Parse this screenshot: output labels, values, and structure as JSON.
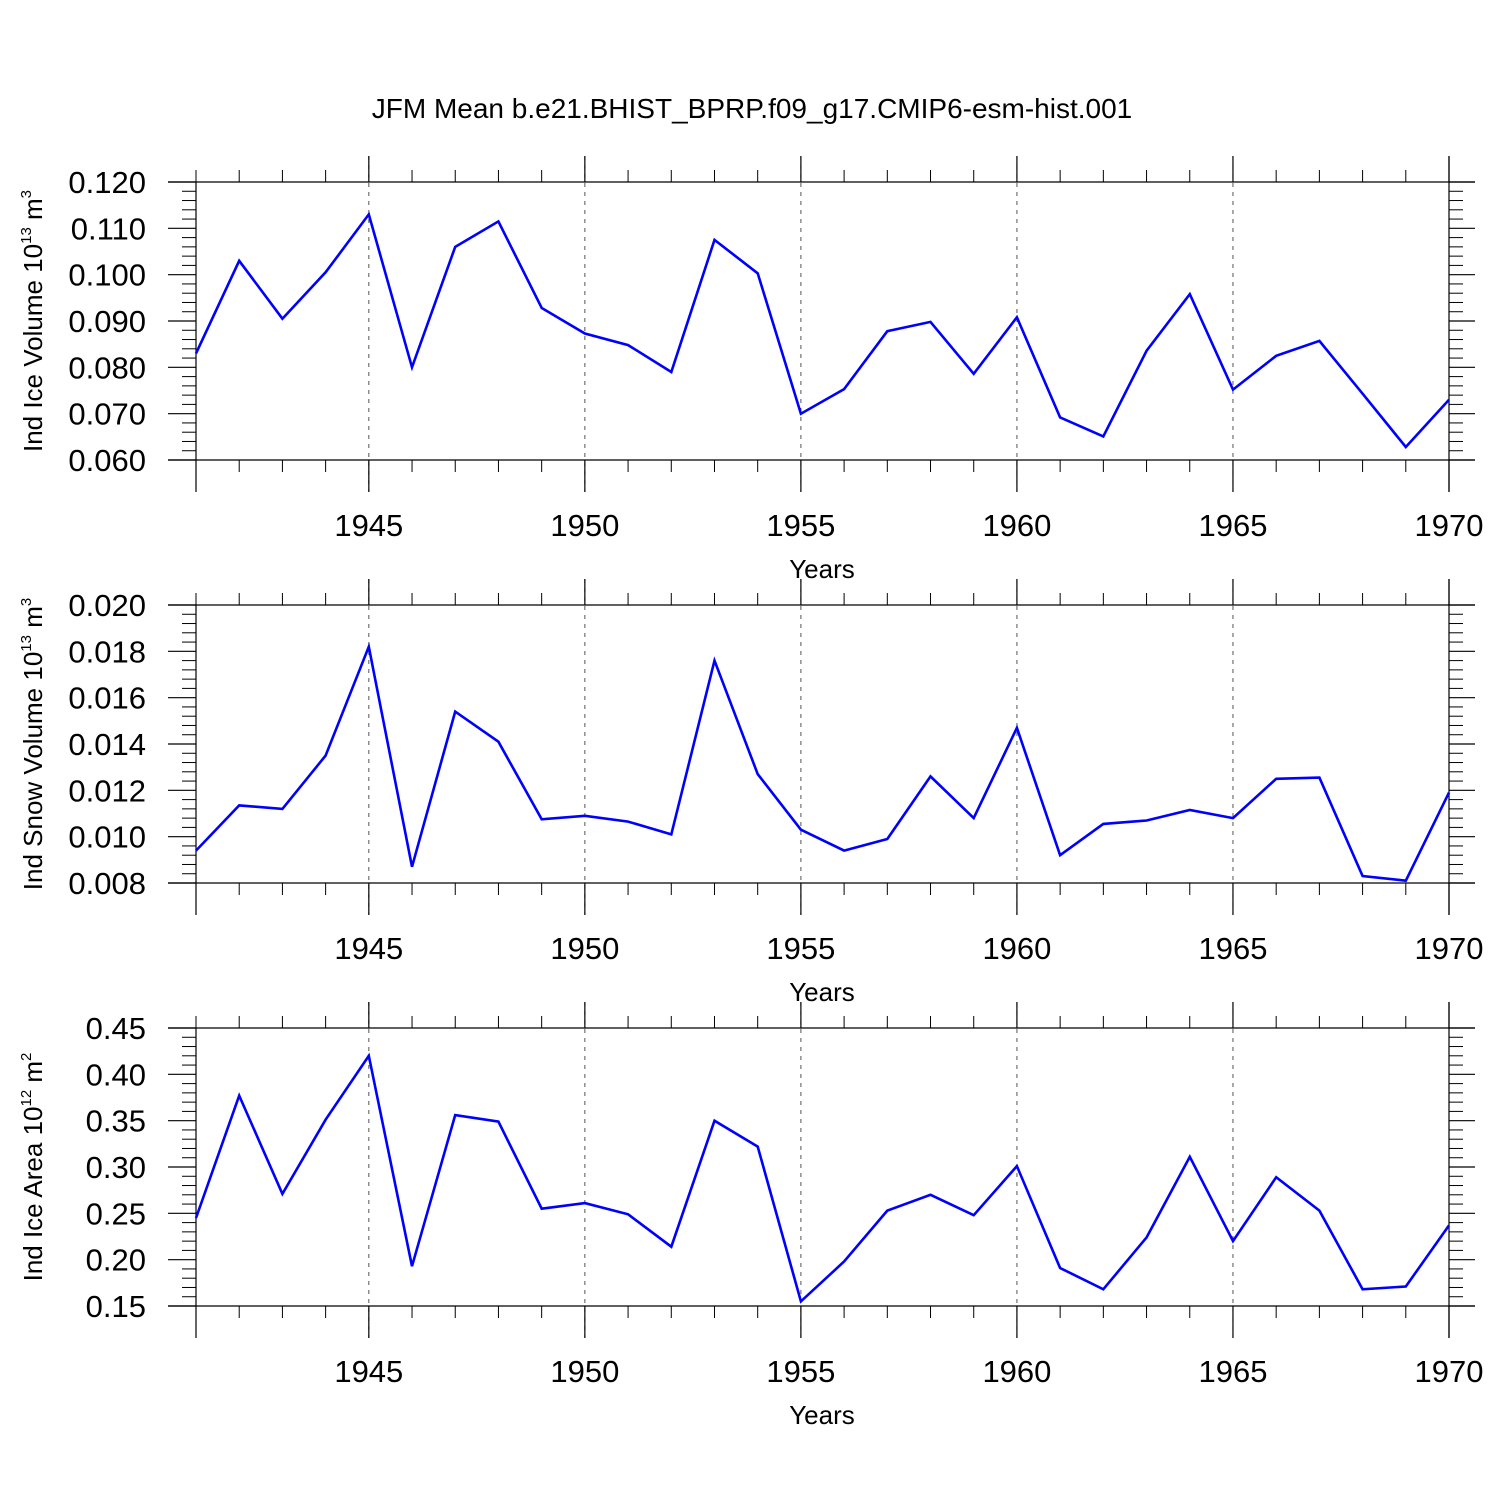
{
  "figure": {
    "title": "JFM Mean b.e21.BHIST_BPRP.f09_g17.CMIP6-esm-hist.001",
    "line_color": "#0000ff",
    "grid_color": "#555555"
  },
  "chart_data": [
    {
      "type": "line",
      "ylabel": "Ind Ice Volume 10^13 m^3",
      "ylabel_parts": {
        "main": "Ind Ice Volume 10",
        "exp1": "13",
        "unit": " m",
        "exp2": "3"
      },
      "xlabel": "Years",
      "xlim": [
        1941,
        1970
      ],
      "ylim": [
        0.06,
        0.12
      ],
      "yticks": [
        0.06,
        0.07,
        0.08,
        0.09,
        0.1,
        0.11,
        0.12
      ],
      "ytick_labels": [
        "0.060",
        "0.070",
        "0.080",
        "0.090",
        "0.100",
        "0.110",
        "0.120"
      ],
      "xticks": [
        1945,
        1950,
        1955,
        1960,
        1965,
        1970
      ],
      "xtick_labels": [
        "1945",
        "1950",
        "1955",
        "1960",
        "1965",
        "1970"
      ],
      "grid": "vertical dashed at major x ticks",
      "x": [
        1941,
        1942,
        1943,
        1944,
        1945,
        1946,
        1947,
        1948,
        1949,
        1950,
        1951,
        1952,
        1953,
        1954,
        1955,
        1956,
        1957,
        1958,
        1959,
        1960,
        1961,
        1962,
        1963,
        1964,
        1965,
        1966,
        1967,
        1968,
        1969,
        1970
      ],
      "values": [
        0.083,
        0.103,
        0.0905,
        0.1005,
        0.113,
        0.08,
        0.106,
        0.1115,
        0.0928,
        0.0873,
        0.0848,
        0.079,
        0.1075,
        0.1003,
        0.07,
        0.0753,
        0.0878,
        0.0898,
        0.0786,
        0.0908,
        0.0692,
        0.0651,
        0.0836,
        0.0958,
        0.0752,
        0.0825,
        0.0857,
        0.0743,
        0.0628,
        0.073
      ]
    },
    {
      "type": "line",
      "ylabel": "Ind Snow Volume 10^13 m^3",
      "ylabel_parts": {
        "main": "Ind Snow Volume 10",
        "exp1": "13",
        "unit": " m",
        "exp2": "3"
      },
      "xlabel": "Years",
      "xlim": [
        1941,
        1970
      ],
      "ylim": [
        0.008,
        0.02
      ],
      "yticks": [
        0.008,
        0.01,
        0.012,
        0.014,
        0.016,
        0.018,
        0.02
      ],
      "ytick_labels": [
        "0.008",
        "0.010",
        "0.012",
        "0.014",
        "0.016",
        "0.018",
        "0.020"
      ],
      "xticks": [
        1945,
        1950,
        1955,
        1960,
        1965,
        1970
      ],
      "xtick_labels": [
        "1945",
        "1950",
        "1955",
        "1960",
        "1965",
        "1970"
      ],
      "grid": "vertical dashed at major x ticks",
      "x": [
        1941,
        1942,
        1943,
        1944,
        1945,
        1946,
        1947,
        1948,
        1949,
        1950,
        1951,
        1952,
        1953,
        1954,
        1955,
        1956,
        1957,
        1958,
        1959,
        1960,
        1961,
        1962,
        1963,
        1964,
        1965,
        1966,
        1967,
        1968,
        1969,
        1970
      ],
      "values": [
        0.0094,
        0.01135,
        0.0112,
        0.0135,
        0.0182,
        0.0087,
        0.0154,
        0.0141,
        0.01075,
        0.0109,
        0.01065,
        0.0101,
        0.0176,
        0.0127,
        0.0103,
        0.0094,
        0.0099,
        0.0126,
        0.0108,
        0.0147,
        0.0092,
        0.01055,
        0.0107,
        0.01115,
        0.0108,
        0.0125,
        0.01255,
        0.0083,
        0.0081,
        0.0119
      ]
    },
    {
      "type": "line",
      "ylabel": "Ind Ice Area 10^12 m^2",
      "ylabel_parts": {
        "main": "Ind Ice Area 10",
        "exp1": "12",
        "unit": " m",
        "exp2": "2"
      },
      "xlabel": "Years",
      "xlim": [
        1941,
        1970
      ],
      "ylim": [
        0.15,
        0.45
      ],
      "yticks": [
        0.15,
        0.2,
        0.25,
        0.3,
        0.35,
        0.4,
        0.45
      ],
      "ytick_labels": [
        "0.15",
        "0.20",
        "0.25",
        "0.30",
        "0.35",
        "0.40",
        "0.45"
      ],
      "xticks": [
        1945,
        1950,
        1955,
        1960,
        1965,
        1970
      ],
      "xtick_labels": [
        "1945",
        "1950",
        "1955",
        "1960",
        "1965",
        "1970"
      ],
      "grid": "vertical dashed at major x ticks",
      "x": [
        1941,
        1942,
        1943,
        1944,
        1945,
        1946,
        1947,
        1948,
        1949,
        1950,
        1951,
        1952,
        1953,
        1954,
        1955,
        1956,
        1957,
        1958,
        1959,
        1960,
        1961,
        1962,
        1963,
        1964,
        1965,
        1966,
        1967,
        1968,
        1969,
        1970
      ],
      "values": [
        0.245,
        0.377,
        0.271,
        0.351,
        0.42,
        0.193,
        0.356,
        0.349,
        0.255,
        0.261,
        0.249,
        0.214,
        0.35,
        0.322,
        0.155,
        0.198,
        0.253,
        0.27,
        0.248,
        0.301,
        0.191,
        0.168,
        0.224,
        0.311,
        0.22,
        0.289,
        0.253,
        0.168,
        0.171,
        0.237
      ]
    }
  ]
}
